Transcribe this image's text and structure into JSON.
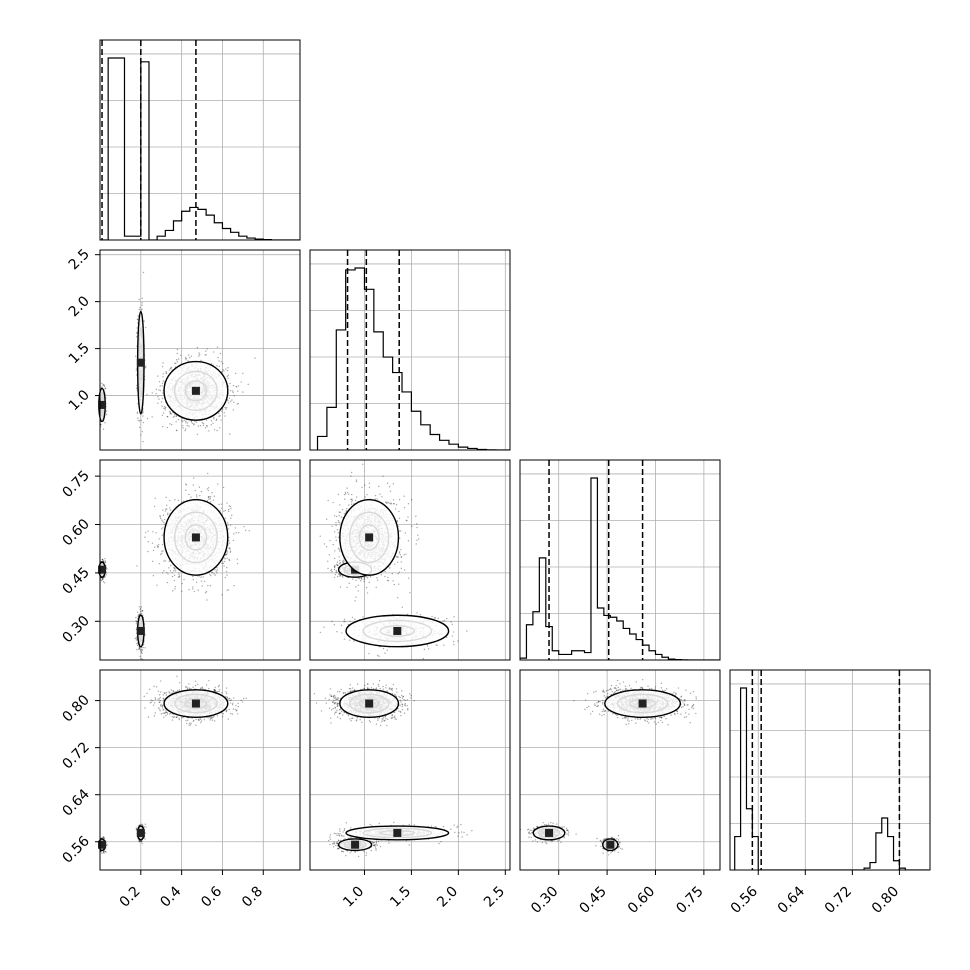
{
  "chart_data": {
    "type": "corner",
    "grid": true,
    "parameters": [
      {
        "axis_range": [
          0.0,
          0.98
        ],
        "ticks": [
          0.2,
          0.4,
          0.6,
          0.8
        ],
        "tick_labels": [
          "0.2",
          "0.4",
          "0.6",
          "0.8"
        ],
        "quantiles": [
          0.01,
          0.2,
          0.47
        ],
        "histogram": {
          "bin_start": 0.0,
          "bin_width": 0.04,
          "counts": [
            0,
            0.95,
            0.95,
            0.02,
            0.02,
            0.93,
            0.0,
            0.02,
            0.05,
            0.1,
            0.15,
            0.17,
            0.16,
            0.13,
            0.09,
            0.06,
            0.04,
            0.02,
            0.01,
            0.005,
            0.002,
            0,
            0,
            0,
            0
          ]
        }
      },
      {
        "axis_range": [
          0.42,
          2.55
        ],
        "ticks": [
          1.0,
          1.5,
          2.0,
          2.5
        ],
        "tick_labels": [
          "1.0",
          "1.5",
          "2.0",
          "2.5"
        ],
        "quantiles": [
          0.82,
          1.02,
          1.37
        ],
        "histogram": {
          "bin_start": 0.5,
          "bin_width": 0.1,
          "counts": [
            0.07,
            0.22,
            0.62,
            0.93,
            0.94,
            0.83,
            0.61,
            0.48,
            0.4,
            0.3,
            0.2,
            0.13,
            0.08,
            0.05,
            0.03,
            0.015,
            0.008,
            0.003,
            0.001,
            0,
            0
          ]
        }
      },
      {
        "axis_range": [
          0.18,
          0.8
        ],
        "ticks": [
          0.3,
          0.45,
          0.6,
          0.75
        ],
        "tick_labels": [
          "0.30",
          "0.45",
          "0.60",
          "0.75"
        ],
        "quantiles": [
          0.27,
          0.455,
          0.56
        ],
        "histogram": {
          "bin_start": 0.18,
          "bin_width": 0.02,
          "counts": [
            0.01,
            0.19,
            0.26,
            0.55,
            0.18,
            0.05,
            0.03,
            0.03,
            0.05,
            0.05,
            0.04,
            0.98,
            0.28,
            0.24,
            0.23,
            0.21,
            0.17,
            0.14,
            0.11,
            0.08,
            0.05,
            0.03,
            0.015,
            0.005,
            0.002,
            0.001,
            0,
            0,
            0,
            0,
            0
          ]
        }
      },
      {
        "axis_range": [
          0.512,
          0.852
        ],
        "ticks": [
          0.56,
          0.64,
          0.72,
          0.8
        ],
        "tick_labels": [
          "0.56",
          "0.64",
          "0.72",
          "0.80"
        ],
        "quantiles": [
          0.55,
          0.565,
          0.8
        ],
        "histogram": {
          "bin_start": 0.52,
          "bin_width": 0.01,
          "counts": [
            0.18,
            0.98,
            0.33,
            0.18,
            0.0,
            0.0,
            0.0,
            0.0,
            0.0,
            0.0,
            0.0,
            0.0,
            0.0,
            0.0,
            0.0,
            0.0,
            0.0,
            0.0,
            0.0,
            0.0,
            0.0,
            0.0,
            0.01,
            0.04,
            0.2,
            0.28,
            0.18,
            0.05,
            0.01,
            0.0,
            0.0,
            0.0,
            0.0
          ]
        }
      }
    ],
    "modes": [
      {
        "center": [
          0.01,
          0.9,
          0.46,
          0.555
        ],
        "sd": [
          0.008,
          0.09,
          0.012,
          0.005
        ]
      },
      {
        "center": [
          0.2,
          1.35,
          0.27,
          0.575
        ],
        "sd": [
          0.008,
          0.28,
          0.025,
          0.006
        ]
      },
      {
        "center": [
          0.47,
          1.05,
          0.56,
          0.795
        ],
        "sd": [
          0.08,
          0.16,
          0.06,
          0.012
        ]
      }
    ],
    "contour_levels_sigma": [
      0.5,
      1.0,
      1.5
    ]
  }
}
